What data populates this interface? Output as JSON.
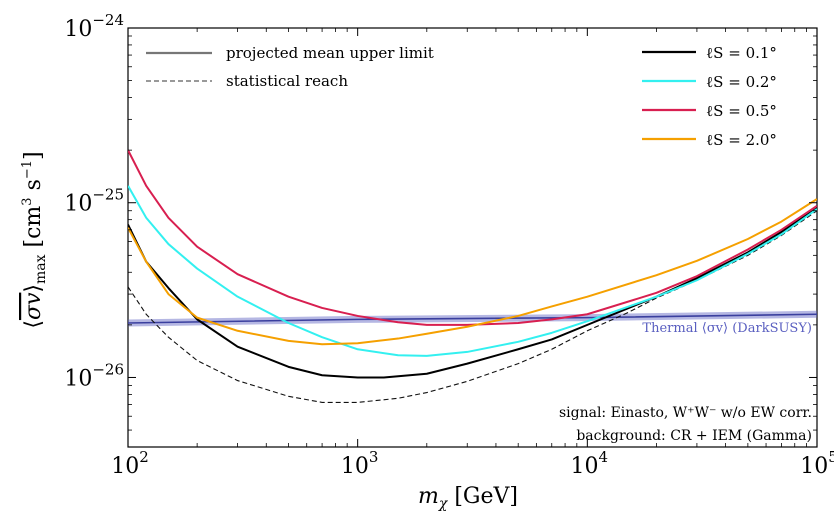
{
  "chart_data": {
    "type": "line",
    "xlabel": "m_χ [GeV]",
    "ylabel": "⟨σv⟩_max [cm³ s⁻¹]",
    "xscale": "log",
    "yscale": "log",
    "xlim": [
      100,
      100000
    ],
    "ylim": [
      4e-27,
      1e-24
    ],
    "x_ticks": [
      {
        "value": 100,
        "base": "10",
        "exp": "2"
      },
      {
        "value": 1000,
        "base": "10",
        "exp": "3"
      },
      {
        "value": 10000,
        "base": "10",
        "exp": "4"
      },
      {
        "value": 100000,
        "base": "10",
        "exp": "5"
      }
    ],
    "y_ticks": [
      {
        "value": 1e-26,
        "base": "10",
        "exp": "−26"
      },
      {
        "value": 1e-25,
        "base": "10",
        "exp": "−25"
      },
      {
        "value": 1e-24,
        "base": "10",
        "exp": "−24"
      }
    ],
    "legend_left": [
      {
        "label": "projected mean upper limit",
        "style": "solid",
        "color": "#777777"
      },
      {
        "label": "statistical reach",
        "style": "dashed",
        "color": "#333333"
      }
    ],
    "series": [
      {
        "name": "ℓS = 0.1°",
        "color": "#000000",
        "style": "solid",
        "x": [
          100,
          120,
          150,
          200,
          300,
          500,
          700,
          1000,
          1300,
          2000,
          3000,
          5000,
          7000,
          10000,
          20000,
          30000,
          50000,
          70000,
          100000
        ],
        "y": [
          7.5e-26,
          4.6e-26,
          3.25e-26,
          2.15e-26,
          1.5e-26,
          1.15e-26,
          1.03e-26,
          1e-26,
          1e-26,
          1.05e-26,
          1.2e-26,
          1.45e-26,
          1.65e-26,
          2e-26,
          2.9e-26,
          3.7e-26,
          5.2e-26,
          6.8e-26,
          9.3e-26
        ]
      },
      {
        "name": "ℓS = 0.2°",
        "color": "#33f0f0",
        "style": "solid",
        "x": [
          100,
          120,
          150,
          200,
          300,
          500,
          700,
          1000,
          1500,
          2000,
          3000,
          5000,
          7000,
          10000,
          20000,
          30000,
          50000,
          70000,
          100000
        ],
        "y": [
          1.25e-25,
          8.2e-26,
          5.8e-26,
          4.2e-26,
          2.9e-26,
          2.05e-26,
          1.7e-26,
          1.45e-26,
          1.34e-26,
          1.33e-26,
          1.4e-26,
          1.6e-26,
          1.8e-26,
          2.1e-26,
          2.9e-26,
          3.6e-26,
          5.1e-26,
          6.6e-26,
          9.2e-26
        ]
      },
      {
        "name": "ℓS = 0.5°",
        "color": "#d81f50",
        "style": "solid",
        "x": [
          100,
          120,
          150,
          200,
          300,
          500,
          700,
          1000,
          1500,
          2000,
          3000,
          5000,
          7000,
          10000,
          20000,
          30000,
          50000,
          70000,
          100000
        ],
        "y": [
          2e-25,
          1.25e-25,
          8.2e-26,
          5.6e-26,
          3.9e-26,
          2.9e-26,
          2.5e-26,
          2.25e-26,
          2.07e-26,
          2e-26,
          2e-26,
          2.05e-26,
          2.15e-26,
          2.3e-26,
          3.05e-26,
          3.8e-26,
          5.4e-26,
          7e-26,
          9.6e-26
        ]
      },
      {
        "name": "ℓS = 2.0°",
        "color": "#f5a000",
        "style": "solid",
        "x": [
          100,
          120,
          150,
          200,
          300,
          500,
          700,
          1000,
          1500,
          2000,
          3000,
          5000,
          7000,
          10000,
          20000,
          30000,
          50000,
          70000,
          100000
        ],
        "y": [
          7.2e-26,
          4.6e-26,
          3e-26,
          2.2e-26,
          1.85e-26,
          1.62e-26,
          1.55e-26,
          1.57e-26,
          1.67e-26,
          1.78e-26,
          1.95e-26,
          2.25e-26,
          2.55e-26,
          2.9e-26,
          3.85e-26,
          4.65e-26,
          6.2e-26,
          7.8e-26,
          1.05e-25
        ]
      }
    ],
    "reach_series": {
      "color": "#111111",
      "style": "dashed",
      "x": [
        100,
        120,
        150,
        200,
        300,
        500,
        700,
        1000,
        1500,
        2000,
        3000,
        5000,
        7000,
        10000,
        15000,
        20000,
        30000,
        50000,
        70000,
        100000
      ],
      "y": [
        3.3e-26,
        2.3e-26,
        1.7e-26,
        1.25e-26,
        9.6e-27,
        7.8e-27,
        7.2e-27,
        7.2e-27,
        7.6e-27,
        8.2e-27,
        9.5e-27,
        1.2e-26,
        1.45e-26,
        1.85e-26,
        2.35e-26,
        2.85e-26,
        3.6e-26,
        5e-26,
        6.5e-26,
        9e-26
      ]
    },
    "thermal_band": {
      "label": "Thermal ⟨σv⟩ (DarkSUSY)",
      "color": "#5a5fc0",
      "x": [
        100,
        1000,
        10000,
        100000
      ],
      "y": [
        2.05e-26,
        2.15e-26,
        2.2e-26,
        2.3e-26
      ]
    },
    "annotations": [
      "signal: Einasto, W⁺W⁻ w/o EW corr.",
      "background: CR + IEM (Gamma)"
    ]
  }
}
